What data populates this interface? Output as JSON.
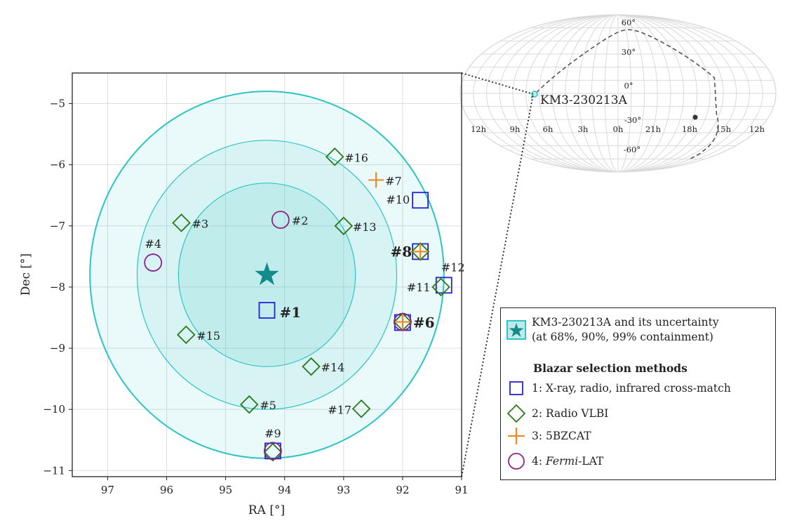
{
  "colors": {
    "region": "#2ec4c4",
    "star": "#158a8a",
    "xray": "#2222dd",
    "vlbi": "#2a7a1a",
    "bzcat": "#f08a20",
    "fermi": "#882288",
    "grid": "#dddddd"
  },
  "chart_data": [
    {
      "type": "scatter",
      "xlabel": "RA [°]",
      "ylabel": "Dec [°]",
      "xlim": [
        97.6,
        91.0
      ],
      "ylim": [
        -11.1,
        -4.5
      ],
      "x_ticks": [
        97,
        96,
        95,
        94,
        93,
        92,
        91
      ],
      "y_ticks": [
        -5,
        -6,
        -7,
        -8,
        -9,
        -10,
        -11
      ],
      "x_tick_labels": [
        "97",
        "96",
        "95",
        "94",
        "93",
        "92",
        "91"
      ],
      "y_tick_labels": [
        "−5",
        "−6",
        "−7",
        "−8",
        "−9",
        "−10",
        "−11"
      ],
      "grid": true,
      "event": {
        "name": "KM3-230213A",
        "ra": 94.3,
        "dec": -7.8,
        "containment_radii_deg": [
          1.5,
          2.2,
          3.0
        ],
        "containment_levels": [
          "68%",
          "90%",
          "99%"
        ]
      },
      "series": [
        {
          "name": "1: X-ray, radio, infrared cross-match",
          "marker": "square",
          "points": [
            {
              "ra": 94.3,
              "dec": -8.38
            },
            {
              "ra": 91.7,
              "dec": -6.58
            },
            {
              "ra": 91.7,
              "dec": -7.42
            },
            {
              "ra": 91.3,
              "dec": -7.97
            },
            {
              "ra": 92.0,
              "dec": -8.58
            },
            {
              "ra": 94.2,
              "dec": -10.68
            }
          ]
        },
        {
          "name": "2: Radio VLBI",
          "marker": "diamond",
          "points": [
            {
              "ra": 93.15,
              "dec": -5.87
            },
            {
              "ra": 95.75,
              "dec": -6.95
            },
            {
              "ra": 93.0,
              "dec": -7.0
            },
            {
              "ra": 91.7,
              "dec": -7.42
            },
            {
              "ra": 91.35,
              "dec": -8.0
            },
            {
              "ra": 92.0,
              "dec": -8.57
            },
            {
              "ra": 95.67,
              "dec": -8.78
            },
            {
              "ra": 93.55,
              "dec": -9.3
            },
            {
              "ra": 94.6,
              "dec": -9.92
            },
            {
              "ra": 92.7,
              "dec": -9.99
            },
            {
              "ra": 94.2,
              "dec": -10.7
            }
          ]
        },
        {
          "name": "3: 5BZCAT",
          "marker": "plus",
          "points": [
            {
              "ra": 92.45,
              "dec": -6.25
            },
            {
              "ra": 91.7,
              "dec": -7.42
            },
            {
              "ra": 92.0,
              "dec": -8.57
            }
          ]
        },
        {
          "name": "4: Fermi-LAT",
          "marker": "circle",
          "points": [
            {
              "ra": 94.07,
              "dec": -6.9
            },
            {
              "ra": 96.23,
              "dec": -7.6
            },
            {
              "ra": 92.0,
              "dec": -8.57
            },
            {
              "ra": 94.2,
              "dec": -10.68
            }
          ]
        }
      ],
      "annotations": [
        {
          "text": "#1",
          "ra": 94.3,
          "dec": -8.38,
          "bold": true
        },
        {
          "text": "#2",
          "ra": 94.07,
          "dec": -6.9
        },
        {
          "text": "#3",
          "ra": 95.75,
          "dec": -6.95
        },
        {
          "text": "#4",
          "ra": 96.23,
          "dec": -7.6
        },
        {
          "text": "#5",
          "ra": 94.6,
          "dec": -9.92
        },
        {
          "text": "#6",
          "ra": 92.0,
          "dec": -8.57,
          "bold": true
        },
        {
          "text": "#7",
          "ra": 92.45,
          "dec": -6.25
        },
        {
          "text": "#8",
          "ra": 91.7,
          "dec": -7.42,
          "bold": true
        },
        {
          "text": "#9",
          "ra": 94.2,
          "dec": -10.7
        },
        {
          "text": "#10",
          "ra": 91.7,
          "dec": -6.58
        },
        {
          "text": "#11",
          "ra": 91.35,
          "dec": -8.0
        },
        {
          "text": "#12",
          "ra": 91.3,
          "dec": -7.97
        },
        {
          "text": "#13",
          "ra": 93.0,
          "dec": -7.0
        },
        {
          "text": "#14",
          "ra": 93.55,
          "dec": -9.3
        },
        {
          "text": "#15",
          "ra": 95.67,
          "dec": -8.78
        },
        {
          "text": "#16",
          "ra": 93.15,
          "dec": -5.87
        },
        {
          "text": "#17",
          "ra": 92.7,
          "dec": -9.99
        }
      ]
    },
    {
      "type": "sky-map",
      "projection": "mollweide",
      "ra_tick_labels": [
        "12h",
        "9h",
        "6h",
        "3h",
        "0h",
        "21h",
        "18h",
        "15h",
        "12h"
      ],
      "dec_tick_labels": [
        "60°",
        "30°",
        "0°",
        "-30°",
        "-60°"
      ],
      "source_label": "KM3-230213A"
    }
  ],
  "legend": {
    "event_label": "KM3-230213A and its uncertainty",
    "event_sublabel": "(at 68%, 90%, 99% containment)",
    "heading": "Blazar selection methods",
    "items": [
      "1: X-ray, radio, infrared cross-match",
      "2: Radio VLBI",
      "3: 5BZCAT"
    ],
    "fermi_italic": "Fermi",
    "fermi_rest": "-LAT",
    "fermi_prefix": "4: "
  }
}
